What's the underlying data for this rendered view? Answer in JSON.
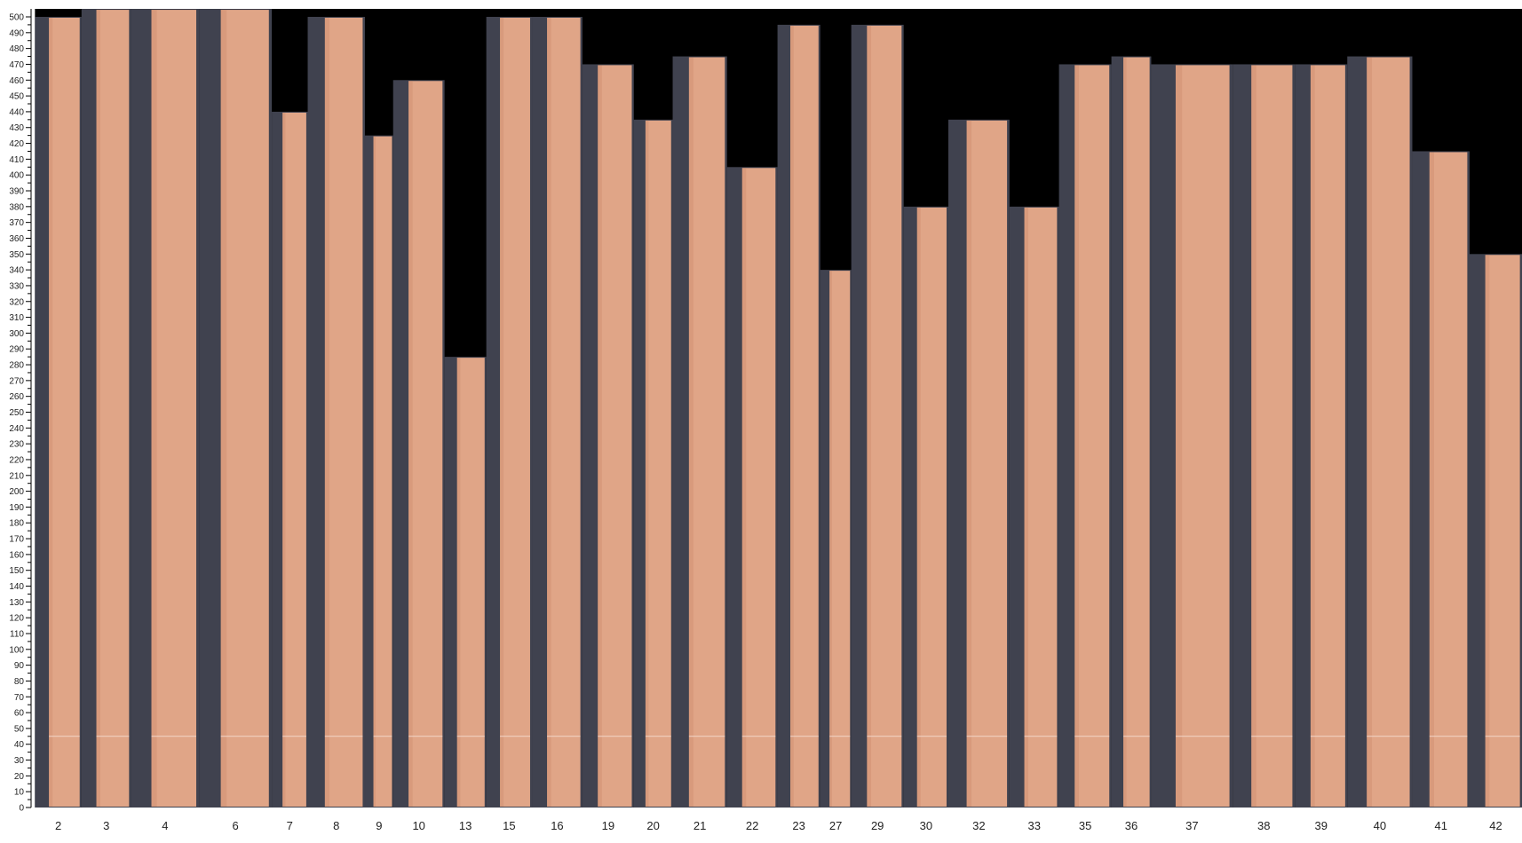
{
  "chart_data": {
    "type": "bar",
    "categories": [
      "2",
      "3",
      "4",
      "6",
      "7",
      "8",
      "9",
      "10",
      "13",
      "15",
      "16",
      "19",
      "20",
      "21",
      "22",
      "23",
      "27",
      "29",
      "30",
      "32",
      "33",
      "35",
      "36",
      "37",
      "38",
      "39",
      "40",
      "41",
      "42"
    ],
    "values": [
      500,
      505,
      505,
      505,
      440,
      500,
      425,
      460,
      285,
      500,
      500,
      470,
      435,
      475,
      405,
      495,
      340,
      495,
      380,
      435,
      380,
      470,
      475,
      470,
      470,
      470,
      475,
      415,
      350
    ],
    "ylim": [
      0,
      505
    ],
    "yticks": [
      0,
      10,
      20,
      30,
      40,
      50,
      60,
      70,
      80,
      90,
      100,
      110,
      120,
      130,
      140,
      150,
      160,
      170,
      180,
      190,
      200,
      210,
      220,
      230,
      240,
      250,
      260,
      270,
      280,
      290,
      300,
      310,
      320,
      330,
      340,
      350,
      360,
      370,
      380,
      390,
      400,
      410,
      420,
      430,
      440,
      450,
      460,
      470,
      480,
      490,
      500
    ],
    "grid": false,
    "colors": {
      "wood": "#e0a587",
      "wood_dark": "#cf8f72",
      "backing": "#40424f",
      "empty": "#000000"
    }
  }
}
